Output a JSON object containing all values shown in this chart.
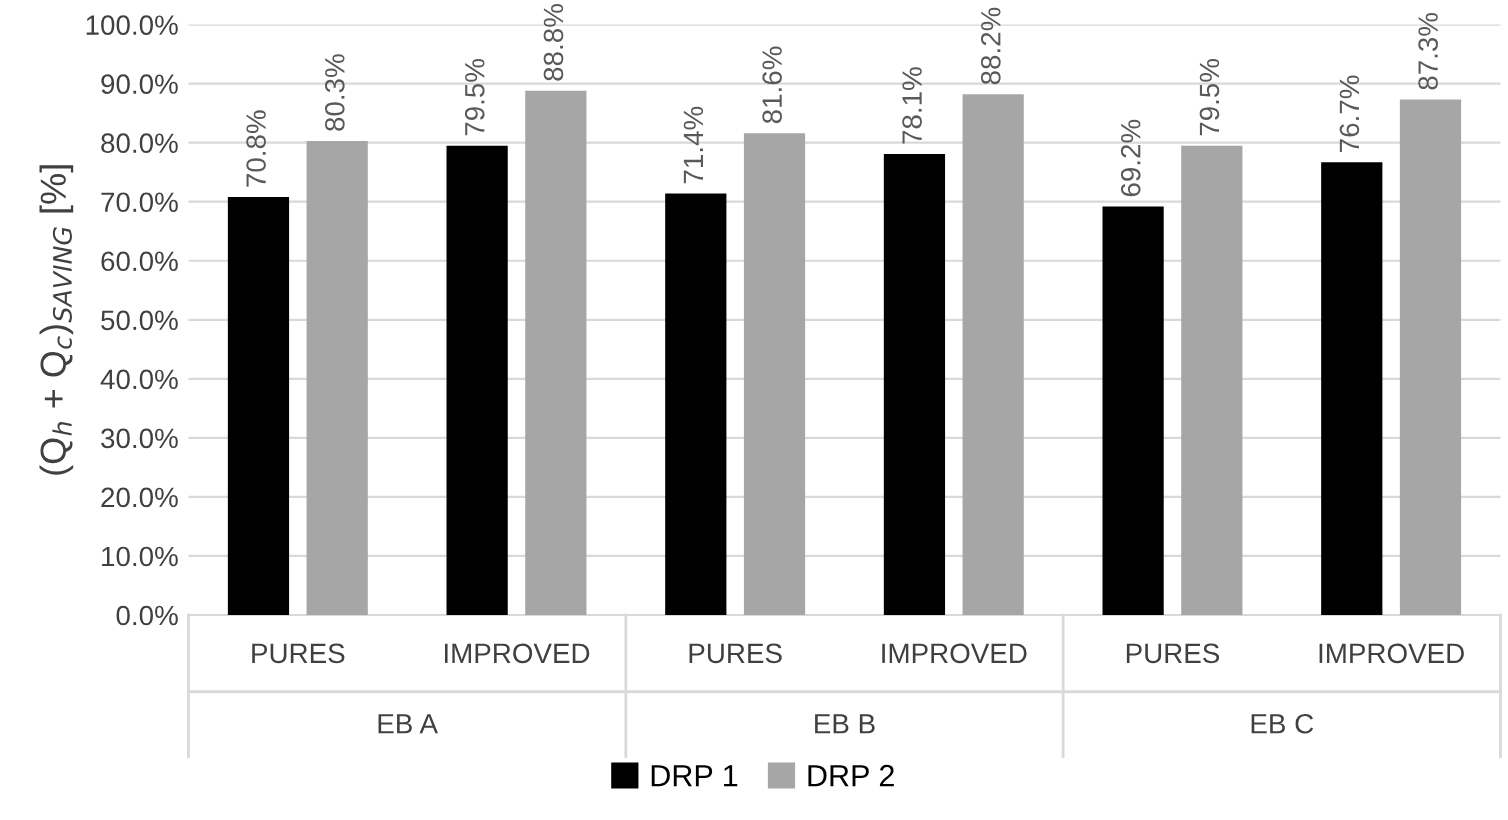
{
  "chart_data": {
    "type": "bar",
    "ylabel": "(Q$_{h}$ + Q$_{c}$)$_{SAVING}$ [%]",
    "categories": [
      "PURES",
      "IMPROVED",
      "PURES",
      "IMPROVED",
      "PURES",
      "IMPROVED"
    ],
    "annotations": [
      "EB A",
      "EB B",
      "EB C"
    ],
    "series": [
      {
        "name": "DRP 1",
        "color": "#000000",
        "values": [
          70.8,
          79.5,
          71.4,
          78.1,
          69.2,
          76.7
        ],
        "value_labels": [
          "70.8%",
          "79.5%",
          "71.4%",
          "78.1%",
          "69.2%",
          "76.7%"
        ]
      },
      {
        "name": "DRP 2",
        "color": "#a6a6a6",
        "values": [
          80.3,
          88.8,
          81.6,
          88.2,
          79.5,
          87.3
        ],
        "value_labels": [
          "80.3%",
          "88.8%",
          "81.6%",
          "88.2%",
          "79.5%",
          "87.3%"
        ]
      }
    ],
    "ylim": [
      0,
      100
    ],
    "yticks": [
      {
        "value": 0,
        "label": "0.0%"
      },
      {
        "value": 10,
        "label": "10.0%"
      },
      {
        "value": 20,
        "label": "20.0%"
      },
      {
        "value": 30,
        "label": "30.0%"
      },
      {
        "value": 40,
        "label": "40.0%"
      },
      {
        "value": 50,
        "label": "50.0%"
      },
      {
        "value": 60,
        "label": "60.0%"
      },
      {
        "value": 70,
        "label": "70.0%"
      },
      {
        "value": 80,
        "label": "80.0%"
      },
      {
        "value": 90,
        "label": "90.0%"
      },
      {
        "value": 100,
        "label": "100.0%"
      }
    ],
    "grid": "y",
    "legend": "bottom"
  }
}
